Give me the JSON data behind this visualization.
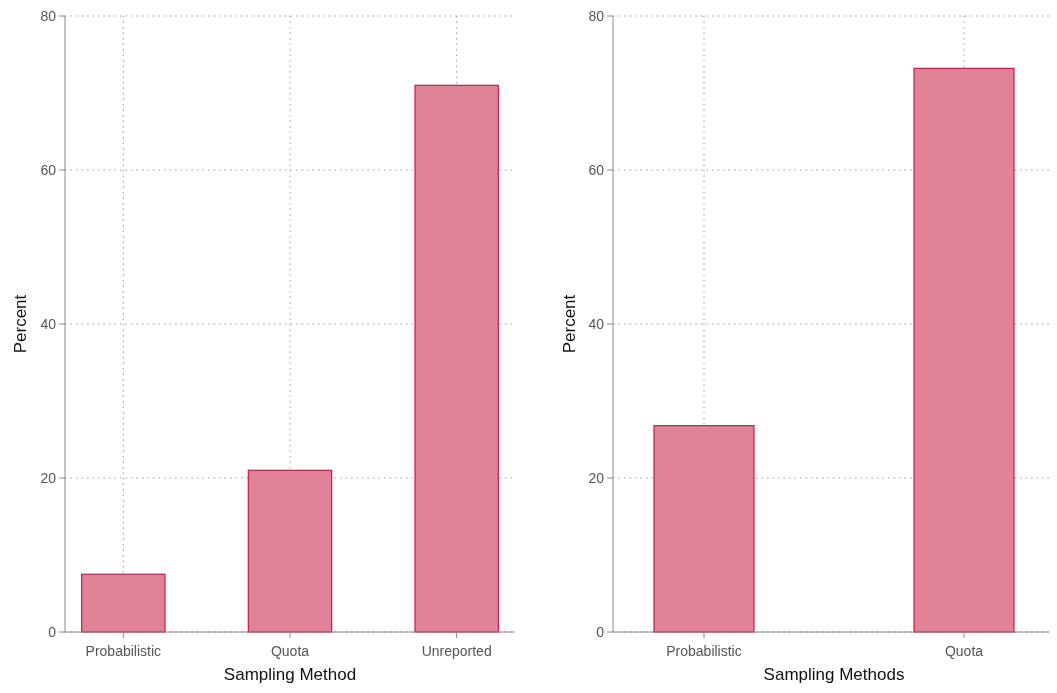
{
  "chart_data": [
    {
      "type": "bar",
      "categories": [
        "Probabilistic",
        "Quota",
        "Unreported"
      ],
      "values": [
        7.5,
        21,
        71
      ],
      "color": "#e08399",
      "xlabel": "Sampling Method",
      "ylabel": "Percent",
      "ylim": [
        0,
        80
      ],
      "yticks": [
        0,
        20,
        40,
        60,
        80
      ],
      "grid": true
    },
    {
      "type": "bar",
      "categories": [
        "Probabilistic",
        "Quota"
      ],
      "values": [
        26.8,
        73.2
      ],
      "color": "#e08399",
      "xlabel": "Sampling Methods",
      "ylabel": "Percent",
      "ylim": [
        0,
        80
      ],
      "yticks": [
        0,
        20,
        40,
        60,
        80
      ],
      "grid": true
    }
  ]
}
